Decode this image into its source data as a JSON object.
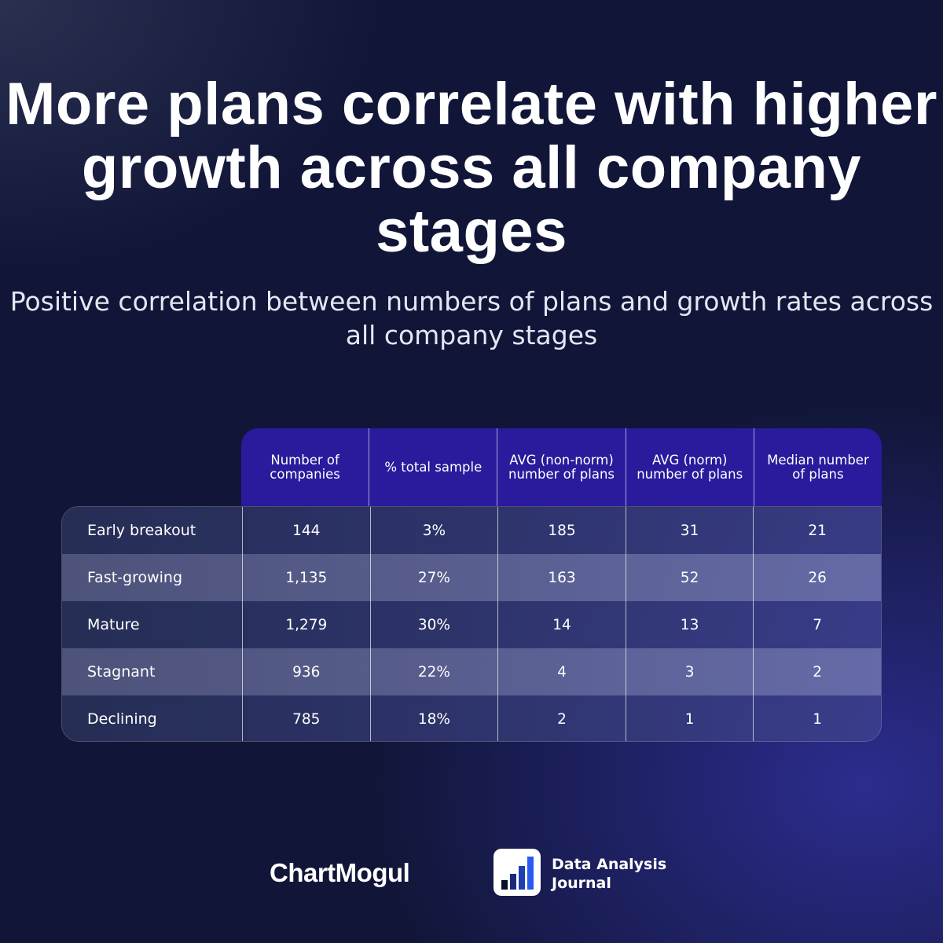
{
  "title": "More plans correlate with higher growth across all company stages",
  "subtitle": "Positive correlation between numbers of plans and growth rates across all company stages",
  "chart_data": {
    "type": "table",
    "columns": [
      "Number of companies",
      "% total sample",
      "AVG (non-norm) number of plans",
      "AVG (norm) number of plans",
      "Median number of plans"
    ],
    "rows": [
      {
        "label": "Early breakout",
        "values": [
          "144",
          "3%",
          "185",
          "31",
          "21"
        ]
      },
      {
        "label": "Fast-growing",
        "values": [
          "1,135",
          "27%",
          "163",
          "52",
          "26"
        ]
      },
      {
        "label": "Mature",
        "values": [
          "1,279",
          "30%",
          "14",
          "13",
          "7"
        ]
      },
      {
        "label": "Stagnant",
        "values": [
          "936",
          "22%",
          "4",
          "3",
          "2"
        ]
      },
      {
        "label": "Declining",
        "values": [
          "785",
          "18%",
          "2",
          "1",
          "1"
        ]
      }
    ]
  },
  "footer": {
    "brand": "ChartMogul",
    "partner": "Data Analysis Journal",
    "partner_icon": "bar-chart-icon"
  },
  "colors": {
    "header": "#2a1a9c",
    "background": "#111638"
  }
}
